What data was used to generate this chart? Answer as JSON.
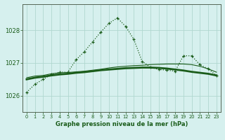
{
  "title": "Graphe pression niveau de la mer (hPa)",
  "bg_color": "#d6f0ee",
  "grid_color": "#b0d8d0",
  "line_color": "#1a5c1a",
  "spine_color": "#556655",
  "xlim": [
    -0.5,
    23.5
  ],
  "ylim": [
    1025.5,
    1028.8
  ],
  "yticks": [
    1026,
    1027,
    1028
  ],
  "xticks": [
    0,
    1,
    2,
    3,
    4,
    5,
    6,
    7,
    8,
    9,
    10,
    11,
    12,
    13,
    14,
    15,
    16,
    17,
    18,
    19,
    20,
    21,
    22,
    23
  ],
  "series_dotted_x": [
    0,
    1,
    2,
    3,
    4,
    5,
    6,
    7,
    8,
    9,
    10,
    11,
    12,
    13,
    14,
    15,
    16,
    17,
    18,
    19,
    20,
    21,
    22,
    23
  ],
  "series_dotted_y": [
    1026.1,
    1026.35,
    1026.5,
    1026.65,
    1026.72,
    1026.72,
    1027.1,
    1027.35,
    1027.65,
    1027.95,
    1028.22,
    1028.38,
    1028.12,
    1027.72,
    1027.05,
    1026.87,
    1026.8,
    1026.78,
    1026.75,
    1027.22,
    1027.22,
    1026.95,
    1026.82,
    1026.62
  ],
  "series_thin_x": [
    0,
    1,
    2,
    3,
    4,
    5,
    6,
    7,
    8,
    9,
    10,
    11,
    12,
    13,
    14,
    15,
    16,
    17,
    18,
    19,
    20,
    21,
    22,
    23
  ],
  "series_thin_y": [
    1026.55,
    1026.6,
    1026.62,
    1026.67,
    1026.7,
    1026.71,
    1026.73,
    1026.75,
    1026.78,
    1026.81,
    1026.85,
    1026.88,
    1026.9,
    1026.92,
    1026.93,
    1026.95,
    1026.96,
    1026.97,
    1026.97,
    1026.97,
    1026.95,
    1026.9,
    1026.82,
    1026.72
  ],
  "series_thick_x": [
    0,
    1,
    2,
    3,
    4,
    5,
    6,
    7,
    8,
    9,
    10,
    11,
    12,
    13,
    14,
    15,
    16,
    17,
    18,
    19,
    20,
    21,
    22,
    23
  ],
  "series_thick_y": [
    1026.5,
    1026.55,
    1026.58,
    1026.62,
    1026.65,
    1026.67,
    1026.7,
    1026.72,
    1026.75,
    1026.78,
    1026.8,
    1026.82,
    1026.84,
    1026.85,
    1026.86,
    1026.86,
    1026.85,
    1026.83,
    1026.8,
    1026.77,
    1026.73,
    1026.7,
    1026.67,
    1026.62
  ]
}
